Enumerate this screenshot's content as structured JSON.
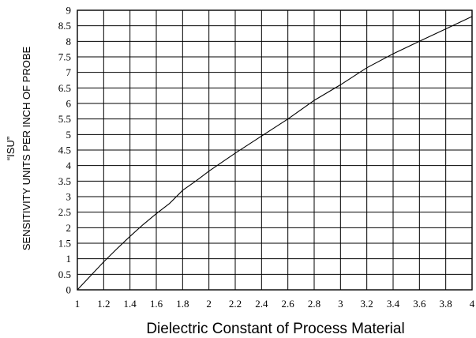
{
  "chart_data": {
    "type": "line",
    "title": "",
    "xlabel": "Dielectric Constant of Process Material",
    "ylabel_line1": "“ISU”",
    "ylabel_line2": "SENSITIVITY UNITS PER INCH OF PROBE",
    "xlim": [
      1,
      4
    ],
    "ylim": [
      0,
      9
    ],
    "x_ticks": [
      "1",
      "1.2",
      "1.4",
      "1.6",
      "1.8",
      "2",
      "2.2",
      "2.4",
      "2.6",
      "2.8",
      "3",
      "3.2",
      "3.4",
      "3.6",
      "3.8",
      "4"
    ],
    "y_ticks": [
      "0",
      "0.5",
      "1",
      "1.5",
      "2",
      "2.5",
      "3",
      "3.5",
      "4",
      "4.5",
      "5",
      "5.5",
      "6",
      "6.5",
      "7",
      "7.5",
      "8",
      "8.5",
      "9"
    ],
    "grid": true,
    "series": [
      {
        "x": [
          1.0,
          1.1,
          1.2,
          1.3,
          1.4,
          1.5,
          1.6,
          1.7,
          1.8,
          1.9,
          2.0,
          2.2,
          2.4,
          2.6,
          2.8,
          3.0,
          3.2,
          3.4,
          3.6,
          3.8,
          4.0
        ],
        "y": [
          0.0,
          0.45,
          0.9,
          1.32,
          1.72,
          2.1,
          2.45,
          2.78,
          3.2,
          3.5,
          3.82,
          4.4,
          4.95,
          5.5,
          6.1,
          6.6,
          7.15,
          7.6,
          8.0,
          8.4,
          8.8
        ]
      }
    ]
  }
}
